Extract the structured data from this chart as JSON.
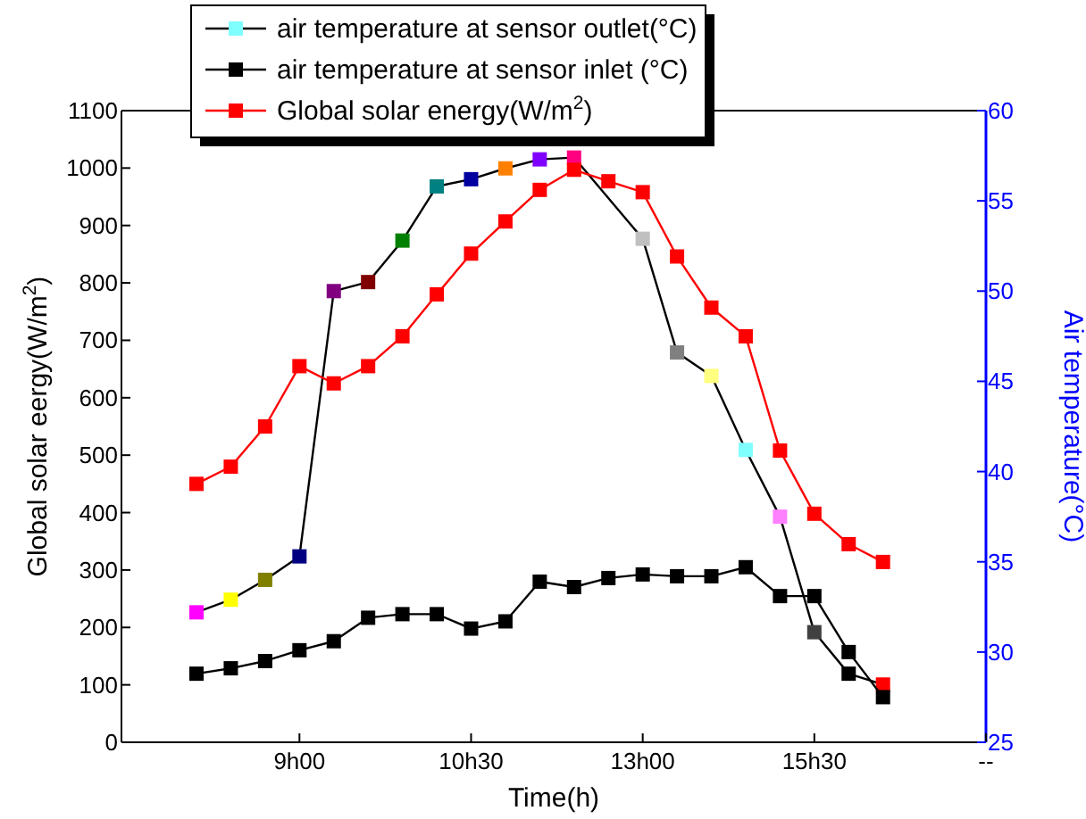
{
  "chart_data": {
    "type": "line",
    "xlabel": "Time(h)",
    "ylabel": "Global solar eergy(W/m$^{2}$)",
    "y2label": "Air temperature(°C)",
    "categories": [
      null,
      null,
      null,
      "9h00",
      null,
      null,
      null,
      null,
      "10h30",
      null,
      null,
      null,
      null,
      "13h00",
      null,
      null,
      null,
      null,
      "15h30",
      null,
      null,
      null,
      null,
      "--"
    ],
    "ylim": [
      0,
      1100
    ],
    "yticks": [
      0,
      100,
      200,
      300,
      400,
      500,
      600,
      700,
      800,
      900,
      1000,
      1100
    ],
    "y2lim": [
      25,
      60
    ],
    "y2ticks": [
      25,
      30,
      35,
      40,
      45,
      50,
      55,
      60
    ],
    "marker": "square",
    "legend": "top",
    "grid": false,
    "series": [
      {
        "name": "air temperature at sensor outlet(°C)",
        "axis": "y2",
        "color": "#000000",
        "colors": [
          "#ff00ff",
          "#ffff00",
          "#808000",
          "#000080",
          "#800080",
          "#800000",
          "#008000",
          "#008080",
          "#0000a0",
          "#ff8000",
          "#8000ff",
          "#ff0080",
          null,
          "#c0c0c0",
          "#808080",
          "#ffff80",
          "#80ffff",
          "#ff80ff",
          "#404040",
          "#000000",
          "#ff0000",
          null,
          null,
          null
        ],
        "values": [
          32.2,
          32.9,
          34.0,
          35.3,
          50.0,
          50.5,
          52.8,
          55.8,
          56.2,
          56.8,
          57.3,
          57.4,
          null,
          52.9,
          46.6,
          45.3,
          41.2,
          37.5,
          31.1,
          28.8,
          28.2,
          null,
          null,
          null
        ]
      },
      {
        "name": "air temperature at sensor inlet (°C)",
        "axis": "y2",
        "color": "#000000",
        "values": [
          28.8,
          29.1,
          29.5,
          30.1,
          30.6,
          31.9,
          32.1,
          32.1,
          31.3,
          31.7,
          33.9,
          33.6,
          34.1,
          34.3,
          34.2,
          34.2,
          34.7,
          33.1,
          33.1,
          30.0,
          27.5,
          null,
          null,
          null
        ]
      },
      {
        "name": "Global solar energy(W/m$^{2}$)",
        "color": "#ff0000",
        "values": [
          450,
          480,
          550,
          655,
          625,
          655,
          707,
          780,
          851,
          907,
          962,
          997,
          977,
          958,
          846,
          757,
          707,
          508,
          398,
          345,
          314,
          null,
          null,
          null
        ]
      }
    ]
  }
}
